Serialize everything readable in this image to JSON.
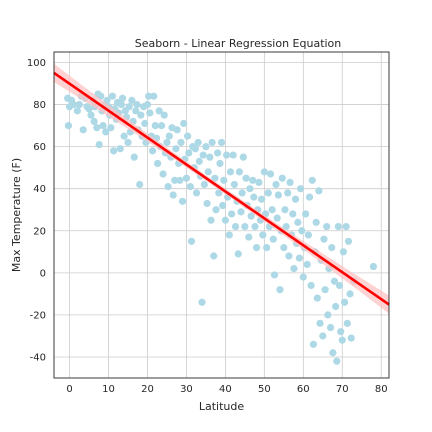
{
  "chart_data": {
    "type": "scatter",
    "title": "Seaborn - Linear Regression Equation",
    "xlabel": "Latitude",
    "ylabel": "Max Temperature (F)",
    "xlim": [
      -4,
      82
    ],
    "ylim": [
      -50,
      105
    ],
    "xticks": [
      0,
      10,
      20,
      30,
      40,
      50,
      60,
      70,
      80
    ],
    "yticks": [
      -40,
      -20,
      0,
      20,
      40,
      60,
      80,
      100
    ],
    "grid": true,
    "colors": {
      "points": "#add8e6",
      "regression_line": "#ff0000",
      "confidence_band": "#ffc0c0",
      "grid": "#cccccc",
      "spine": "#262626"
    },
    "regression": {
      "x_range": [
        -4,
        82
      ],
      "slope": -1.28,
      "intercept": 89.9,
      "ci_half_width": 3.0
    },
    "points": [
      [
        -0.5,
        83
      ],
      [
        -0.3,
        70
      ],
      [
        0,
        79
      ],
      [
        0.5,
        82
      ],
      [
        1,
        80
      ],
      [
        2,
        77
      ],
      [
        2.5,
        80
      ],
      [
        3,
        84
      ],
      [
        3.5,
        68
      ],
      [
        4,
        83
      ],
      [
        4.5,
        79
      ],
      [
        5,
        78
      ],
      [
        5.5,
        75
      ],
      [
        6,
        82
      ],
      [
        6.3,
        72
      ],
      [
        6.5,
        79
      ],
      [
        7,
        69
      ],
      [
        7.3,
        85
      ],
      [
        7.6,
        61
      ],
      [
        8,
        84
      ],
      [
        8.3,
        77
      ],
      [
        8.6,
        70
      ],
      [
        9,
        80
      ],
      [
        9.3,
        67
      ],
      [
        9.6,
        82
      ],
      [
        10,
        79
      ],
      [
        10.3,
        75
      ],
      [
        10.6,
        69
      ],
      [
        11,
        84
      ],
      [
        11.3,
        58
      ],
      [
        11.6,
        78
      ],
      [
        12,
        73
      ],
      [
        12.3,
        81
      ],
      [
        12.6,
        76
      ],
      [
        13,
        59
      ],
      [
        13.3,
        80
      ],
      [
        13.6,
        83
      ],
      [
        14,
        65
      ],
      [
        14.3,
        77
      ],
      [
        14.6,
        74
      ],
      [
        15,
        62
      ],
      [
        15.3,
        79
      ],
      [
        15.6,
        67
      ],
      [
        16,
        82
      ],
      [
        16.3,
        72
      ],
      [
        16.6,
        55
      ],
      [
        17,
        77
      ],
      [
        17.3,
        80
      ],
      [
        17.6,
        68
      ],
      [
        18,
        42
      ],
      [
        18.3,
        75
      ],
      [
        18.6,
        65
      ],
      [
        19,
        79
      ],
      [
        19.3,
        71
      ],
      [
        19.6,
        62
      ],
      [
        20,
        80
      ],
      [
        20.3,
        84
      ],
      [
        20.6,
        76
      ],
      [
        21,
        65
      ],
      [
        21.3,
        58
      ],
      [
        21.6,
        84
      ],
      [
        22,
        70
      ],
      [
        22.3,
        64
      ],
      [
        22.6,
        52
      ],
      [
        23,
        77
      ],
      [
        23.3,
        60
      ],
      [
        23.6,
        70
      ],
      [
        24,
        47
      ],
      [
        24.3,
        75
      ],
      [
        24.6,
        57
      ],
      [
        25,
        62
      ],
      [
        25.3,
        41
      ],
      [
        25.6,
        65
      ],
      [
        26,
        55
      ],
      [
        26.3,
        69
      ],
      [
        26.6,
        37
      ],
      [
        27,
        44
      ],
      [
        27.3,
        59
      ],
      [
        27.6,
        68
      ],
      [
        28,
        52
      ],
      [
        28.3,
        44
      ],
      [
        28.6,
        62
      ],
      [
        29,
        34
      ],
      [
        29.3,
        71
      ],
      [
        29.6,
        54
      ],
      [
        30,
        45
      ],
      [
        30.3,
        65
      ],
      [
        30.6,
        57
      ],
      [
        31,
        41
      ],
      [
        31.3,
        15
      ],
      [
        31.6,
        60
      ],
      [
        32,
        50
      ],
      [
        32.3,
        59
      ],
      [
        32.6,
        38
      ],
      [
        33,
        62
      ],
      [
        33.3,
        53
      ],
      [
        33.6,
        46
      ],
      [
        34,
        -14
      ],
      [
        34.3,
        56
      ],
      [
        34.6,
        42
      ],
      [
        35,
        60
      ],
      [
        35.3,
        33
      ],
      [
        35.6,
        48
      ],
      [
        36,
        55
      ],
      [
        36.3,
        25
      ],
      [
        36.6,
        62
      ],
      [
        37,
        8
      ],
      [
        37.3,
        45
      ],
      [
        37.6,
        30
      ],
      [
        38,
        57
      ],
      [
        38.3,
        38
      ],
      [
        38.6,
        52
      ],
      [
        39,
        62
      ],
      [
        39.3,
        32
      ],
      [
        39.6,
        44
      ],
      [
        40,
        25
      ],
      [
        40.3,
        56
      ],
      [
        40.6,
        36
      ],
      [
        41,
        18
      ],
      [
        41.3,
        48
      ],
      [
        41.6,
        28
      ],
      [
        42,
        56
      ],
      [
        42.3,
        42
      ],
      [
        42.6,
        22
      ],
      [
        43,
        34
      ],
      [
        43.3,
        9
      ],
      [
        43.6,
        48
      ],
      [
        44,
        29
      ],
      [
        44.3,
        38
      ],
      [
        44.6,
        55
      ],
      [
        45,
        22
      ],
      [
        45.3,
        45
      ],
      [
        45.6,
        32
      ],
      [
        46,
        17
      ],
      [
        46.3,
        40
      ],
      [
        46.6,
        27
      ],
      [
        47,
        44
      ],
      [
        47.3,
        36
      ],
      [
        47.6,
        22
      ],
      [
        48,
        12
      ],
      [
        48.3,
        30
      ],
      [
        48.6,
        43
      ],
      [
        49,
        25
      ],
      [
        49.3,
        35
      ],
      [
        49.6,
        18
      ],
      [
        50,
        48
      ],
      [
        50.3,
        28
      ],
      [
        50.6,
        12
      ],
      [
        51,
        38
      ],
      [
        51.3,
        22
      ],
      [
        51.6,
        47
      ],
      [
        52,
        30
      ],
      [
        52.3,
        16
      ],
      [
        52.6,
        -1
      ],
      [
        53,
        42
      ],
      [
        53.3,
        26
      ],
      [
        53.6,
        37
      ],
      [
        54,
        -8
      ],
      [
        54.3,
        20
      ],
      [
        54.6,
        45
      ],
      [
        55,
        12
      ],
      [
        55.3,
        30
      ],
      [
        55.6,
        22
      ],
      [
        56,
        38
      ],
      [
        56.3,
        8
      ],
      [
        56.6,
        43
      ],
      [
        57,
        18
      ],
      [
        57.3,
        28
      ],
      [
        57.6,
        2
      ],
      [
        58,
        35
      ],
      [
        58.3,
        14
      ],
      [
        58.6,
        24
      ],
      [
        59,
        7
      ],
      [
        59.3,
        40
      ],
      [
        59.6,
        20
      ],
      [
        60,
        -2
      ],
      [
        60.3,
        12
      ],
      [
        60.6,
        28
      ],
      [
        61,
        4
      ],
      [
        61.3,
        18
      ],
      [
        61.6,
        36
      ],
      [
        62,
        -6
      ],
      [
        62.3,
        44
      ],
      [
        62.6,
        -34
      ],
      [
        63,
        10
      ],
      [
        63.3,
        24
      ],
      [
        63.6,
        -12
      ],
      [
        64,
        39
      ],
      [
        64.3,
        -24
      ],
      [
        64.6,
        6
      ],
      [
        65,
        -30
      ],
      [
        65.3,
        16
      ],
      [
        65.6,
        -8
      ],
      [
        66,
        22
      ],
      [
        66.3,
        -20
      ],
      [
        66.6,
        2
      ],
      [
        67,
        -26
      ],
      [
        67.3,
        12
      ],
      [
        67.6,
        -38
      ],
      [
        68,
        -4
      ],
      [
        68.3,
        -16
      ],
      [
        68.6,
        -42
      ],
      [
        69,
        22
      ],
      [
        69.3,
        -6
      ],
      [
        69.6,
        -28
      ],
      [
        70,
        -32
      ],
      [
        70.3,
        10
      ],
      [
        70.6,
        -14
      ],
      [
        71,
        22
      ],
      [
        71.3,
        -24
      ],
      [
        71.6,
        15
      ],
      [
        72,
        -10
      ],
      [
        72.3,
        -31
      ],
      [
        73,
        -4
      ],
      [
        78,
        3
      ]
    ]
  }
}
